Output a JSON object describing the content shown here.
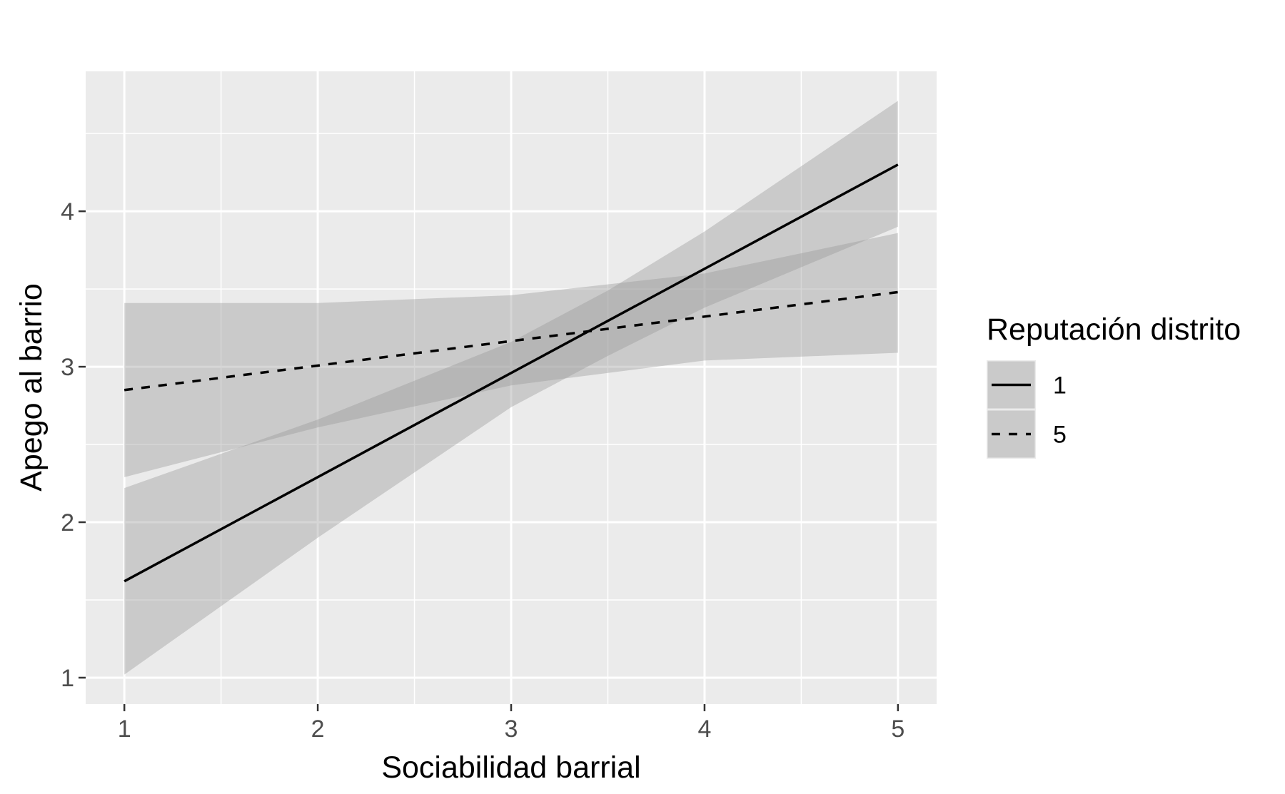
{
  "chart_data": {
    "type": "line",
    "xlabel": "Sociabilidad barrial",
    "ylabel": "Apego al barrio",
    "xlim": [
      0.8,
      5.2
    ],
    "ylim": [
      0.83,
      4.9
    ],
    "x_ticks": [
      1,
      2,
      3,
      4,
      5
    ],
    "y_ticks": [
      1,
      2,
      3,
      4
    ],
    "grid": true,
    "legend": {
      "title": "Reputación distrito",
      "position": "right"
    },
    "series": [
      {
        "name": "1",
        "line_style": "solid",
        "x": [
          1,
          5
        ],
        "y": [
          1.62,
          4.3
        ],
        "band_x": [
          1,
          2,
          3,
          3.5,
          4,
          5
        ],
        "band_lower": [
          1.02,
          1.9,
          2.74,
          3.07,
          3.38,
          3.9
        ],
        "band_upper": [
          2.22,
          2.66,
          3.16,
          3.49,
          3.87,
          4.71
        ]
      },
      {
        "name": "5",
        "line_style": "dashed",
        "x": [
          1,
          5
        ],
        "y": [
          2.85,
          3.48
        ],
        "band_x": [
          1,
          2,
          3,
          4,
          5
        ],
        "band_lower": [
          2.29,
          2.61,
          2.88,
          3.04,
          3.09
        ],
        "band_upper": [
          3.41,
          3.41,
          3.46,
          3.6,
          3.86
        ]
      }
    ],
    "colors": {
      "panel": "#ebebeb",
      "grid": "#ffffff",
      "band": "#999999",
      "line": "#000000",
      "tick": "#333333"
    }
  }
}
